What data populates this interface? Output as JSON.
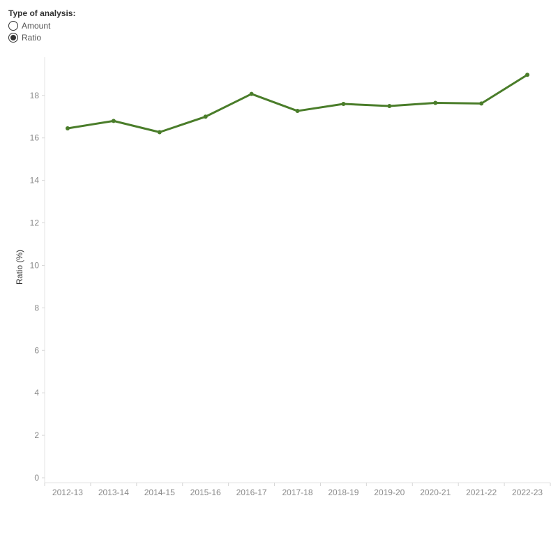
{
  "control": {
    "title": "Type of analysis:",
    "options": [
      {
        "label": "Amount",
        "selected": false
      },
      {
        "label": "Ratio",
        "selected": true
      }
    ]
  },
  "chart_data": {
    "type": "line",
    "categories": [
      "2012-13",
      "2013-14",
      "2014-15",
      "2015-16",
      "2016-17",
      "2017-18",
      "2018-19",
      "2019-20",
      "2020-21",
      "2021-22",
      "2022-23"
    ],
    "series": [
      {
        "values": [
          16.45,
          16.8,
          16.27,
          17.0,
          18.07,
          17.27,
          17.6,
          17.5,
          17.65,
          17.62,
          18.97
        ],
        "color": "#4a7d2a"
      }
    ],
    "ylabel": "Ratio (%)",
    "xlabel": "",
    "ylim": [
      0,
      19.8
    ],
    "yticks": [
      0,
      2,
      4,
      6,
      8,
      10,
      12,
      14,
      16,
      18
    ],
    "grid": false,
    "legend": "none"
  }
}
